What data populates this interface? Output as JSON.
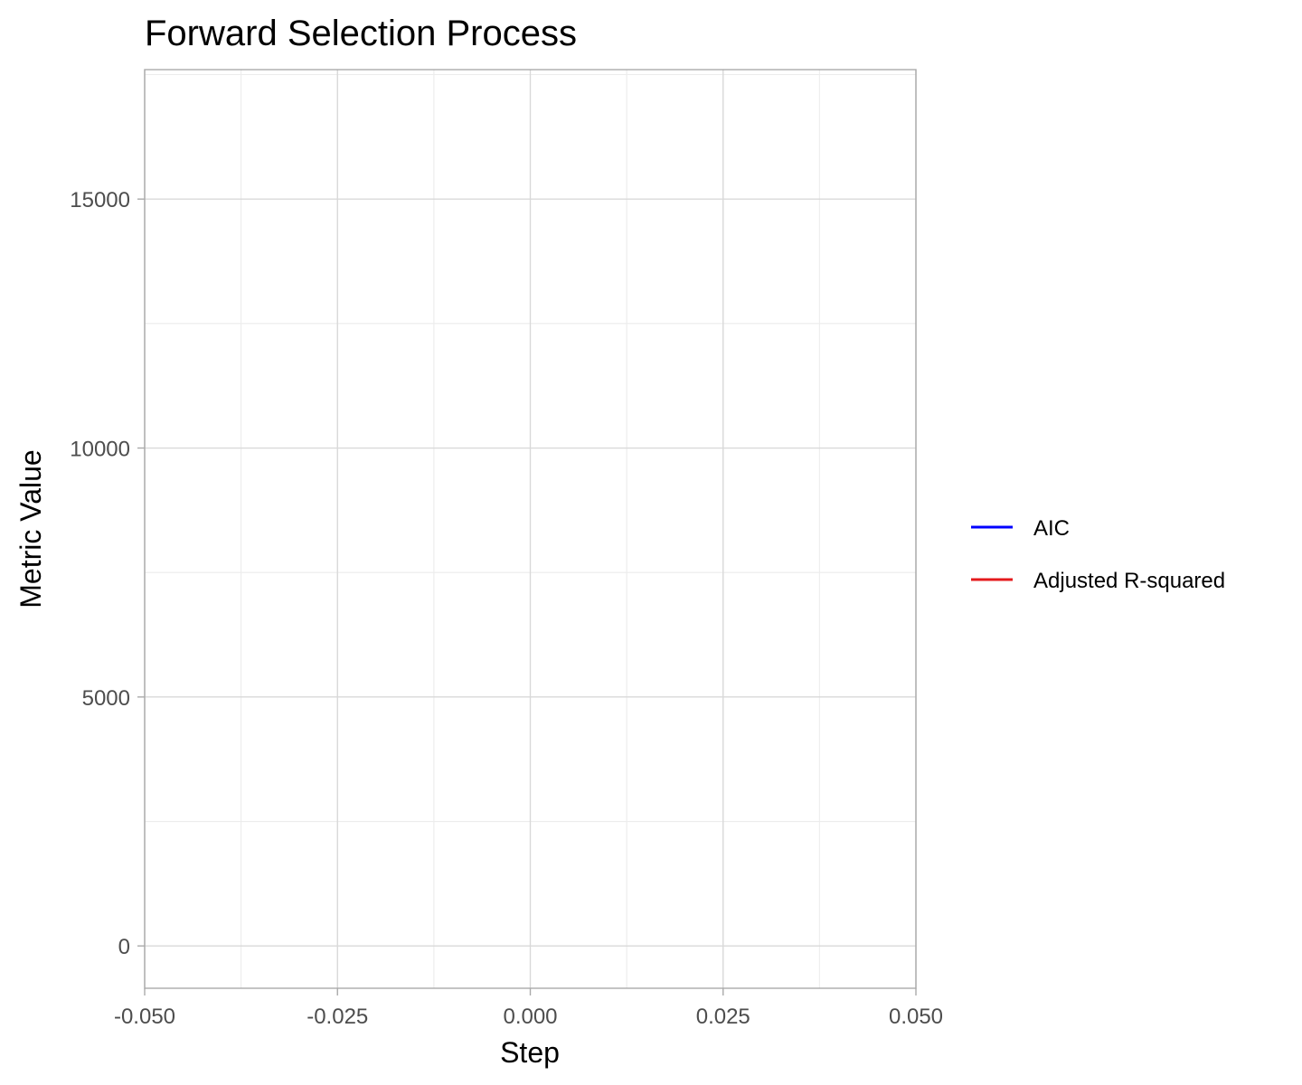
{
  "chart_data": {
    "type": "line",
    "title": "Forward Selection Process",
    "xlabel": "Step",
    "ylabel": "Metric Value",
    "xlim": [
      -0.05,
      0.05
    ],
    "ylim": [
      -850,
      17600
    ],
    "x_ticks": [
      -0.05,
      -0.025,
      0.0,
      0.025,
      0.05
    ],
    "x_tick_labels": [
      "-0.050",
      "-0.025",
      "0.000",
      "0.025",
      "0.050"
    ],
    "y_ticks": [
      0,
      5000,
      10000,
      15000
    ],
    "y_tick_labels": [
      "0",
      "5000",
      "10000",
      "15000"
    ],
    "grid": true,
    "legend_position": "right",
    "series": [
      {
        "name": "AIC",
        "color": "#0000ff",
        "x": [],
        "y": []
      },
      {
        "name": "Adjusted R-squared",
        "color": "#e41a1c",
        "x": [],
        "y": []
      }
    ]
  }
}
